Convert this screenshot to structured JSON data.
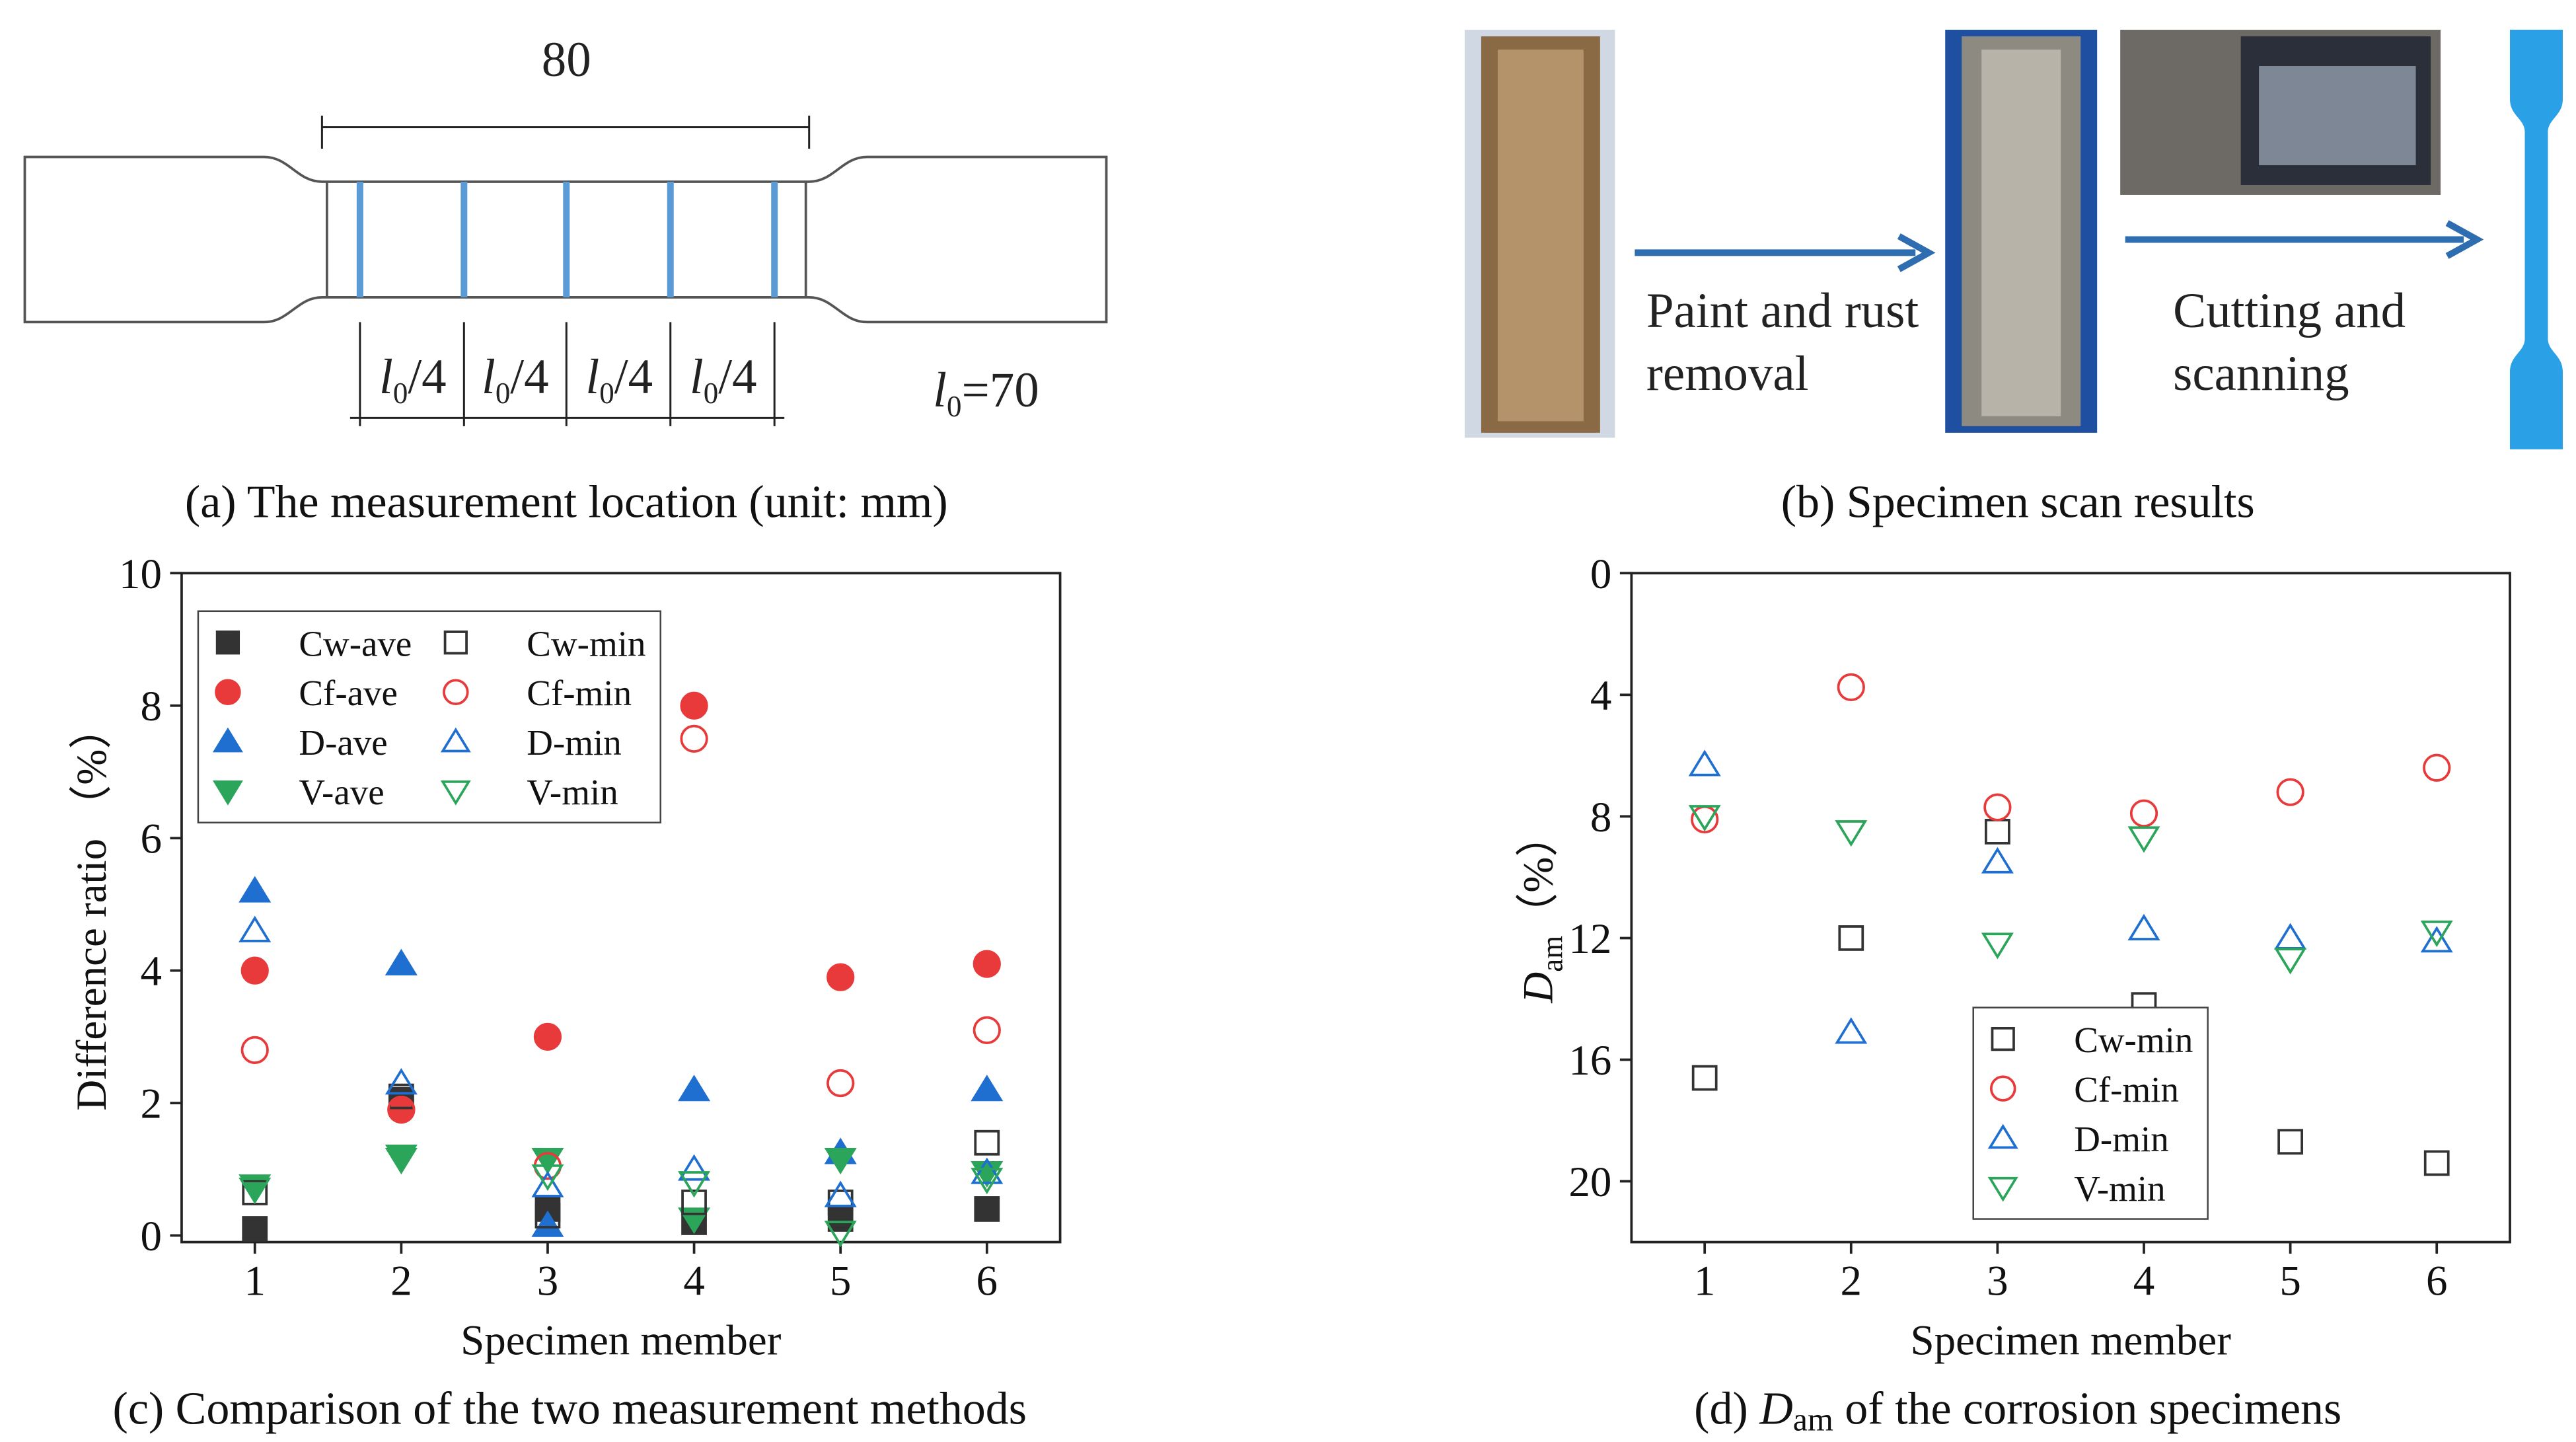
{
  "diagram_a": {
    "dimension_top": "80",
    "segments": [
      {
        "var": "l",
        "sub": "0",
        "rest": "/4"
      },
      {
        "var": "l",
        "sub": "0",
        "rest": "/4"
      },
      {
        "var": "l",
        "sub": "0",
        "rest": "/4"
      },
      {
        "var": "l",
        "sub": "0",
        "rest": "/4"
      }
    ],
    "gauge": {
      "var": "l",
      "sub": "0",
      "rest": "=70"
    },
    "caption": "(a) The measurement location (unit: mm)"
  },
  "diagram_b": {
    "step1": [
      "Paint and rust",
      "removal"
    ],
    "step2": [
      "Cutting and",
      "scanning"
    ],
    "caption": "(b) Specimen scan results"
  },
  "chart_data": [
    {
      "type": "scatter",
      "caption": "(c) Comparison of the two measurement methods",
      "x_label": "Specimen member",
      "y_label": "Difference ratio （%）",
      "xlim": [
        0.5,
        6.5
      ],
      "xticks": [
        1,
        2,
        3,
        4,
        5,
        6
      ],
      "ylim": [
        -0.1,
        10
      ],
      "yticks": [
        0,
        2,
        4,
        6,
        8,
        10
      ],
      "y_inverted": false,
      "legend": "upper left",
      "legend_columns": 2,
      "series": [
        {
          "name": "Cw-ave",
          "color": "#333333",
          "marker": "square",
          "filled": true,
          "x": [
            1,
            2,
            3,
            4,
            5,
            6
          ],
          "values": [
            0.1,
            2.05,
            0.4,
            0.2,
            0.25,
            0.4
          ]
        },
        {
          "name": "Cf-ave",
          "color": "#e83a3a",
          "marker": "circle",
          "filled": true,
          "x": [
            1,
            2,
            3,
            4,
            5,
            6
          ],
          "values": [
            4.0,
            1.9,
            3.0,
            8.0,
            3.9,
            4.1
          ]
        },
        {
          "name": "D-ave",
          "color": "#1f6fd1",
          "marker": "triangle-up",
          "filled": true,
          "x": [
            1,
            2,
            3,
            4,
            5,
            6
          ],
          "values": [
            5.2,
            4.1,
            0.15,
            2.2,
            1.25,
            2.2
          ]
        },
        {
          "name": "V-ave",
          "color": "#2aa55a",
          "marker": "triangle-down",
          "filled": true,
          "x": [
            1,
            2,
            3,
            4,
            5,
            6
          ],
          "values": [
            0.75,
            1.2,
            1.15,
            0.25,
            1.15,
            0.95
          ]
        },
        {
          "name": "Cw-min",
          "color": "#333333",
          "marker": "square",
          "filled": false,
          "x": [
            1,
            2,
            3,
            4,
            5,
            6
          ],
          "values": [
            0.65,
            2.1,
            0.3,
            0.5,
            0.5,
            1.4
          ]
        },
        {
          "name": "Cf-min",
          "color": "#e83a3a",
          "marker": "circle",
          "filled": false,
          "x": [
            1,
            2,
            3,
            4,
            5,
            6
          ],
          "values": [
            2.8,
            1.9,
            1.05,
            7.5,
            2.3,
            3.1
          ]
        },
        {
          "name": "D-min",
          "color": "#1f6fd1",
          "marker": "triangle-up",
          "filled": false,
          "x": [
            1,
            2,
            3,
            4,
            5,
            6
          ],
          "values": [
            4.6,
            2.3,
            0.75,
            1.0,
            0.6,
            0.95
          ]
        },
        {
          "name": "V-min",
          "color": "#2aa55a",
          "marker": "triangle-down",
          "filled": false,
          "x": [
            1,
            2,
            3,
            4,
            5,
            6
          ],
          "values": [
            0.7,
            1.15,
            0.9,
            0.8,
            0.05,
            0.85
          ]
        }
      ]
    },
    {
      "type": "scatter",
      "caption_parts": [
        "(d) ",
        "D",
        "am",
        " of the corrosion specimens"
      ],
      "x_label": "Specimen member",
      "y_label_parts": [
        "D",
        "am",
        "（%）"
      ],
      "xlim": [
        0.5,
        6.5
      ],
      "xticks": [
        1,
        2,
        3,
        4,
        5,
        6
      ],
      "ylim": [
        0,
        22
      ],
      "yticks": [
        0,
        4,
        8,
        12,
        16,
        20
      ],
      "y_inverted": true,
      "legend": "lower center",
      "legend_columns": 1,
      "series": [
        {
          "name": "Cw-min",
          "color": "#333333",
          "marker": "square",
          "filled": false,
          "x": [
            1,
            2,
            3,
            4,
            5,
            6
          ],
          "values": [
            16.6,
            12.0,
            8.5,
            14.2,
            18.7,
            19.4
          ]
        },
        {
          "name": "Cf-min",
          "color": "#e83a3a",
          "marker": "circle",
          "filled": false,
          "x": [
            1,
            2,
            3,
            4,
            5,
            6
          ],
          "values": [
            8.1,
            3.75,
            7.7,
            7.9,
            7.2,
            6.4
          ]
        },
        {
          "name": "D-min",
          "color": "#1f6fd1",
          "marker": "triangle-up",
          "filled": false,
          "x": [
            1,
            2,
            3,
            4,
            5,
            6
          ],
          "values": [
            6.3,
            15.1,
            9.5,
            11.7,
            12.0,
            12.1
          ]
        },
        {
          "name": "V-min",
          "color": "#2aa55a",
          "marker": "triangle-down",
          "filled": false,
          "x": [
            1,
            2,
            3,
            4,
            5,
            6
          ],
          "values": [
            8.0,
            8.5,
            12.2,
            8.7,
            12.7,
            11.8
          ]
        }
      ]
    }
  ]
}
